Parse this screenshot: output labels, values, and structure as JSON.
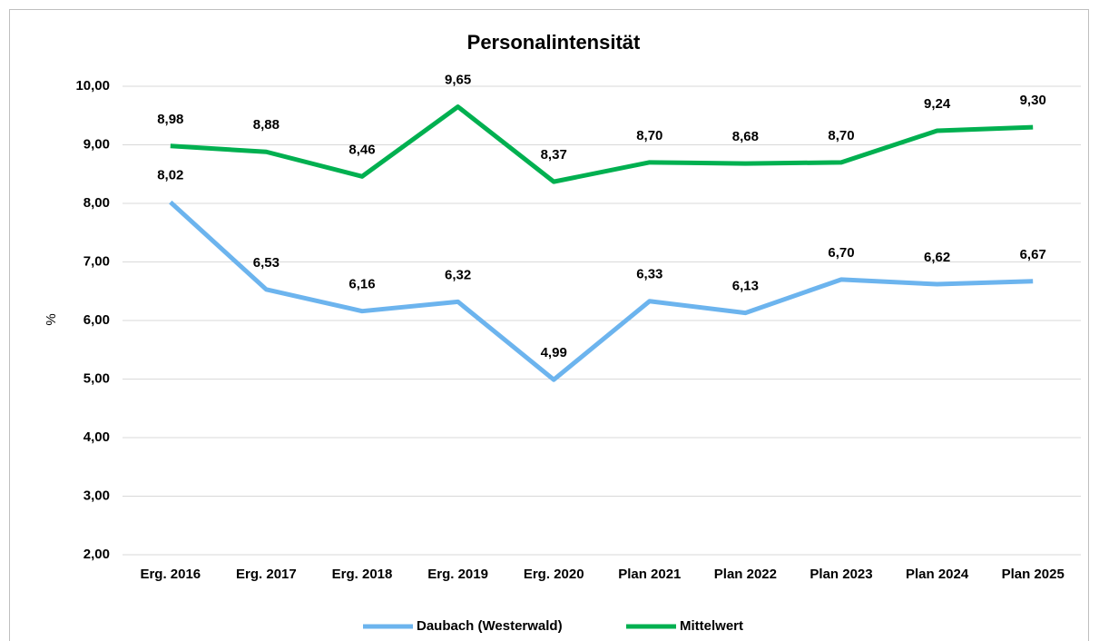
{
  "chart_data": {
    "type": "line",
    "title": "Personalintensität",
    "y_label": "%",
    "categories": [
      "Erg. 2016",
      "Erg. 2017",
      "Erg. 2018",
      "Erg. 2019",
      "Erg. 2020",
      "Plan 2021",
      "Plan 2022",
      "Plan 2023",
      "Plan 2024",
      "Plan 2025"
    ],
    "series": [
      {
        "name": "Daubach (Westerwald)",
        "color": "#6cb4ee",
        "values": [
          8.02,
          6.53,
          6.16,
          6.32,
          4.99,
          6.33,
          6.13,
          6.7,
          6.62,
          6.67
        ],
        "value_labels": [
          "8,02",
          "6,53",
          "6,16",
          "6,32",
          "4,99",
          "6,33",
          "6,13",
          "6,70",
          "6,62",
          "6,67"
        ]
      },
      {
        "name": "Mittelwert",
        "color": "#00b050",
        "values": [
          8.98,
          8.88,
          8.46,
          9.65,
          8.37,
          8.7,
          8.68,
          8.7,
          9.24,
          9.3
        ],
        "value_labels": [
          "8,98",
          "8,88",
          "8,46",
          "9,65",
          "8,37",
          "8,70",
          "8,68",
          "8,70",
          "9,24",
          "9,30"
        ]
      }
    ],
    "ylim": [
      2,
      10
    ],
    "yticks": [
      {
        "value": 2,
        "label": "2,00"
      },
      {
        "value": 3,
        "label": "3,00"
      },
      {
        "value": 4,
        "label": "4,00"
      },
      {
        "value": 5,
        "label": "5,00"
      },
      {
        "value": 6,
        "label": "6,00"
      },
      {
        "value": 7,
        "label": "7,00"
      },
      {
        "value": 8,
        "label": "8,00"
      },
      {
        "value": 9,
        "label": "9,00"
      },
      {
        "value": 10,
        "label": "10,00"
      }
    ],
    "grid": true,
    "legend": "bottom"
  }
}
